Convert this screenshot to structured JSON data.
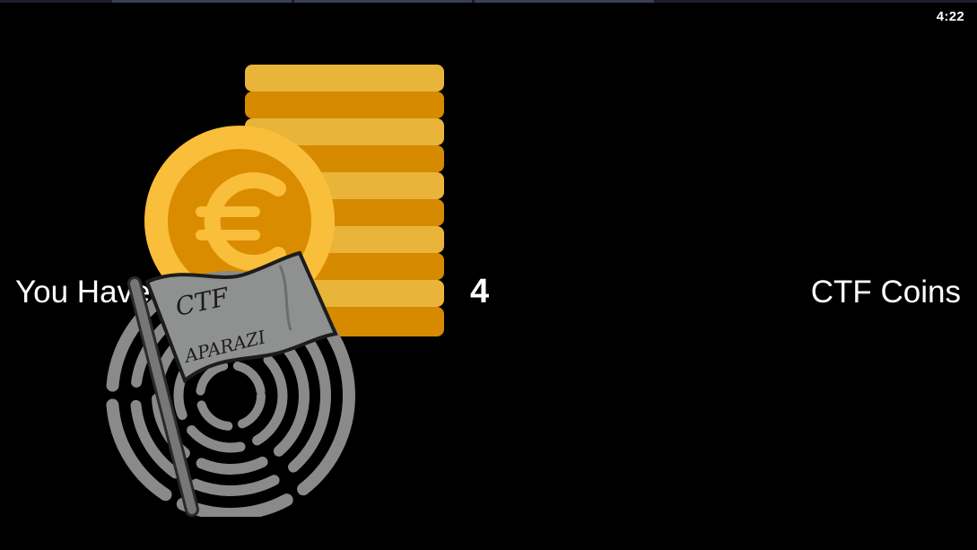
{
  "status_bar": {
    "time": "4:22"
  },
  "main": {
    "prefix_label": "You Have",
    "coin_count": "4",
    "suffix_label": "CTF Coins"
  },
  "logo": {
    "flag_line1": "CTF",
    "flag_line2": "APARAZI"
  },
  "icons": {
    "coins": "coin-stack-euro-icon",
    "logo": "ctf-aparazi-logo"
  },
  "colors": {
    "background": "#000000",
    "coin_light": "#E9B43A",
    "coin_dark": "#D68A00",
    "coin_face": "#F9BE3A",
    "logo_gray": "#8A8A8A",
    "text": "#FFFFFF"
  }
}
